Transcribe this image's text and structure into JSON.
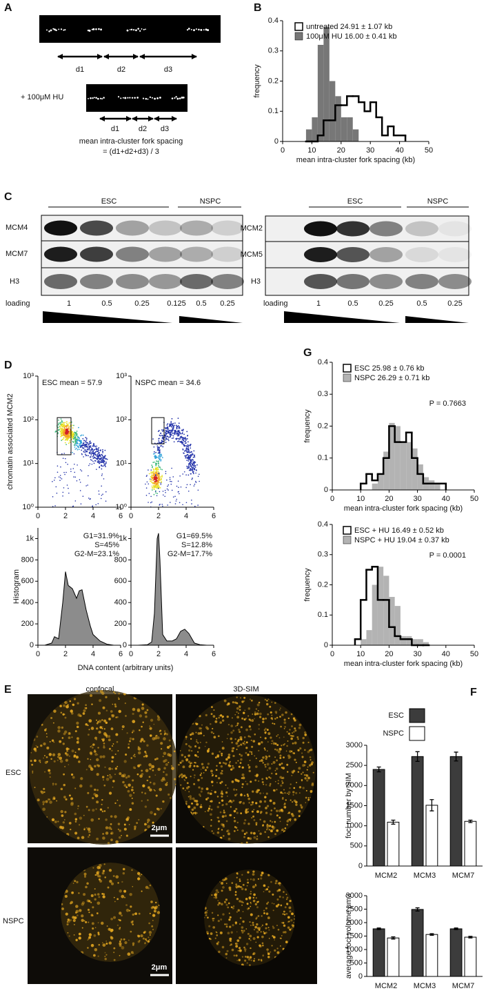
{
  "figure": {
    "panel_labels": [
      "A",
      "B",
      "C",
      "D",
      "E",
      "F",
      "G"
    ],
    "a": {
      "distances": [
        "d1",
        "d2",
        "d3"
      ],
      "treatment": "+ 100μM HU",
      "hu_distances": [
        "d1",
        "d2",
        "d3"
      ],
      "caption": [
        "mean intra-cluster fork spacing",
        "= (d1+d2+d3) / 3"
      ]
    },
    "c": {
      "left": {
        "groups": [
          "ESC",
          "NSPC"
        ],
        "rows": [
          "MCM4",
          "MCM7",
          "H3"
        ],
        "loading_label": "loading",
        "loading": [
          1,
          0.5,
          0.25,
          0.125,
          0.5,
          0.25
        ]
      },
      "right": {
        "groups": [
          "ESC",
          "NSPC"
        ],
        "rows": [
          "MCM2",
          "MCM5",
          "H3"
        ],
        "loading_label": "loading",
        "loading": [
          1,
          0.5,
          0.25,
          0.5,
          0.25
        ]
      }
    },
    "e": {
      "columns": [
        "confocal",
        "3D-SIM"
      ],
      "rows": [
        "ESC",
        "NSPC"
      ],
      "scale_bars": [
        "2μm",
        "2μm"
      ]
    }
  },
  "chart_data": [
    {
      "type": "histogram",
      "xlabel": "mean intra-cluster fork spacing (kb)",
      "ylabel": "frequency",
      "xlim": [
        0,
        50
      ],
      "xticks": [
        0,
        10,
        20,
        30,
        40,
        50
      ],
      "ylim": [
        0,
        0.4
      ],
      "yticks": [
        0,
        0.1,
        0.2,
        0.3,
        0.4
      ],
      "bins": [
        8,
        10,
        12,
        14,
        16,
        18,
        20,
        22,
        24,
        26,
        28,
        30,
        32,
        34,
        36,
        38,
        40,
        42
      ],
      "series": [
        {
          "name": "untreated 24.91 ± 1.07 kb",
          "style": "step",
          "color": "#000000",
          "values": [
            0,
            0,
            0.02,
            0.07,
            0.07,
            0.12,
            0.12,
            0.15,
            0.15,
            0.13,
            0.1,
            0.13,
            0.08,
            0.02,
            0.05,
            0.02,
            0.02
          ]
        },
        {
          "name": "100μM HU 16.00 ± 0.41 kb",
          "style": "filled",
          "color": "#777777",
          "values": [
            0.04,
            0.08,
            0.32,
            0.38,
            0.2,
            0.15,
            0.08,
            0.08,
            0.04,
            0,
            0,
            0,
            0,
            0,
            0,
            0,
            0
          ]
        }
      ]
    },
    {
      "type": "histogram",
      "xlabel": "mean intra-cluster fork spacing (kb)",
      "ylabel": "frequency",
      "annotation": "P = 0.7663",
      "xlim": [
        0,
        50
      ],
      "xticks": [
        0,
        10,
        20,
        30,
        40,
        50
      ],
      "ylim": [
        0,
        0.4
      ],
      "yticks": [
        0,
        0.1,
        0.2,
        0.3,
        0.4
      ],
      "bins": [
        10,
        12,
        14,
        16,
        18,
        20,
        22,
        24,
        26,
        28,
        30,
        32,
        34,
        36,
        38,
        40
      ],
      "series": [
        {
          "name": "ESC 25.98 ± 0.76 kb",
          "style": "step",
          "color": "#000000",
          "values": [
            0.02,
            0.05,
            0.03,
            0.05,
            0.1,
            0.2,
            0.15,
            0.15,
            0.18,
            0.1,
            0.05,
            0.02,
            0.02,
            0.02,
            0.02
          ]
        },
        {
          "name": "NSPC 26.29 ± 0.71 kb",
          "style": "filled",
          "color": "#b3b3b3",
          "values": [
            0,
            0,
            0.02,
            0.05,
            0.12,
            0.21,
            0.2,
            0.15,
            0.15,
            0.13,
            0.08,
            0.04,
            0.03,
            0.02,
            0
          ]
        }
      ]
    },
    {
      "type": "histogram",
      "xlabel": "mean intra-cluster fork spacing (kb)",
      "ylabel": "frequency",
      "annotation": "P = 0.0001",
      "xlim": [
        0,
        50
      ],
      "xticks": [
        0,
        10,
        20,
        30,
        40,
        50
      ],
      "ylim": [
        0,
        0.4
      ],
      "yticks": [
        0,
        0.1,
        0.2,
        0.3,
        0.4
      ],
      "bins": [
        8,
        10,
        12,
        14,
        16,
        18,
        20,
        22,
        24,
        26,
        28,
        30,
        32,
        34
      ],
      "series": [
        {
          "name": "ESC + HU 16.49 ± 0.52 kb",
          "style": "step",
          "color": "#000000",
          "values": [
            0.02,
            0.15,
            0.25,
            0.26,
            0.15,
            0.15,
            0.06,
            0.03,
            0.02,
            0.02,
            0,
            0,
            0
          ]
        },
        {
          "name": "NSPC + HU 19.04 ± 0.37 kb",
          "style": "filled",
          "color": "#b3b3b3",
          "values": [
            0,
            0.02,
            0.05,
            0.2,
            0.26,
            0.23,
            0.16,
            0.13,
            0.03,
            0.03,
            0.02,
            0.02,
            0.01
          ]
        }
      ]
    },
    {
      "type": "scatter",
      "ylabel": "chromatin associated MCM2",
      "annotation": "ESC mean = 57.9",
      "log_y": true,
      "xlim": [
        0,
        6
      ],
      "xticks": [
        0,
        2,
        4,
        6
      ],
      "ylim": [
        1,
        1000
      ],
      "yticks": [
        {
          "value": 1,
          "label": "10⁰"
        },
        {
          "value": 10,
          "label": "10¹"
        },
        {
          "value": 100,
          "label": "10²"
        },
        {
          "value": 1000,
          "label": "10³"
        }
      ]
    },
    {
      "type": "scatter",
      "annotation": "NSPC mean = 34.6",
      "log_y": true,
      "xlim": [
        0,
        6
      ],
      "xticks": [
        0,
        2,
        4,
        6
      ],
      "ylim": [
        1,
        1000
      ],
      "yticks": [
        {
          "value": 1,
          "label": "10⁰"
        },
        {
          "value": 10,
          "label": "10¹"
        },
        {
          "value": 100,
          "label": "10²"
        },
        {
          "value": 1000,
          "label": "10³"
        }
      ]
    },
    {
      "type": "area",
      "ylabel": "Histogram",
      "xlabel": "DNA content (arbitrary units)",
      "annotations": [
        "G1=31.9%",
        "S=45%",
        "G2-M=23.1%"
      ],
      "color": "#8c8c8c",
      "xlim": [
        0,
        6
      ],
      "xticks": [
        0,
        2,
        4,
        6
      ],
      "ylim": [
        0,
        1100
      ],
      "yticks": [
        0,
        200,
        400,
        600,
        800,
        {
          "value": 1000,
          "label": "1k"
        }
      ],
      "x": [
        0.5,
        1,
        1.2,
        1.5,
        1.8,
        2,
        2.2,
        2.5,
        2.8,
        3,
        3.2,
        3.5,
        3.8,
        4,
        4.5,
        5,
        5.5
      ],
      "values": [
        0,
        20,
        80,
        60,
        400,
        690,
        560,
        530,
        440,
        510,
        520,
        330,
        180,
        100,
        40,
        10,
        0
      ]
    },
    {
      "type": "area",
      "annotations": [
        "G1=69.5%",
        "S=12.8%",
        "G2-M=17.7%"
      ],
      "color": "#8c8c8c",
      "xlim": [
        0,
        6
      ],
      "xticks": [
        0,
        2,
        4,
        6
      ],
      "ylim": [
        0,
        1100
      ],
      "yticks": [
        0,
        200,
        400,
        600,
        800,
        {
          "value": 1000,
          "label": "1k"
        }
      ],
      "x": [
        0.5,
        1.2,
        1.5,
        1.7,
        1.9,
        2,
        2.1,
        2.3,
        2.6,
        3,
        3.3,
        3.6,
        3.9,
        4.2,
        4.6,
        5,
        5.5
      ],
      "values": [
        0,
        5,
        30,
        300,
        1000,
        1050,
        800,
        100,
        40,
        40,
        60,
        130,
        150,
        110,
        20,
        5,
        0
      ]
    },
    {
      "type": "bar",
      "ylabel": "foci number by SIM",
      "legend": true,
      "categories": [
        "MCM2",
        "MCM3",
        "MCM7"
      ],
      "ylim": [
        0,
        3000
      ],
      "yticks": [
        0,
        500,
        1000,
        1500,
        2000,
        2500,
        3000
      ],
      "series": [
        {
          "name": "ESC",
          "color": "#3c3c3c",
          "values": [
            2400,
            2720,
            2720
          ],
          "errors": [
            60,
            120,
            110
          ]
        },
        {
          "name": "NSPC",
          "color": "#ffffff",
          "values": [
            1090,
            1510,
            1110
          ],
          "errors": [
            50,
            140,
            30
          ]
        }
      ]
    },
    {
      "type": "bar",
      "ylabel": "average foci volume μm3",
      "legend": false,
      "categories": [
        "MCM2",
        "MCM3",
        "MCM7"
      ],
      "ylim": [
        0,
        3000
      ],
      "yticks": [
        0,
        500,
        1000,
        1500,
        2000,
        2500,
        3000
      ],
      "series": [
        {
          "color": "#3c3c3c",
          "values": [
            1770,
            2490,
            1770
          ],
          "errors": [
            30,
            60,
            30
          ]
        },
        {
          "color": "#ffffff",
          "values": [
            1430,
            1560,
            1460
          ],
          "errors": [
            40,
            30,
            30
          ]
        }
      ]
    }
  ]
}
